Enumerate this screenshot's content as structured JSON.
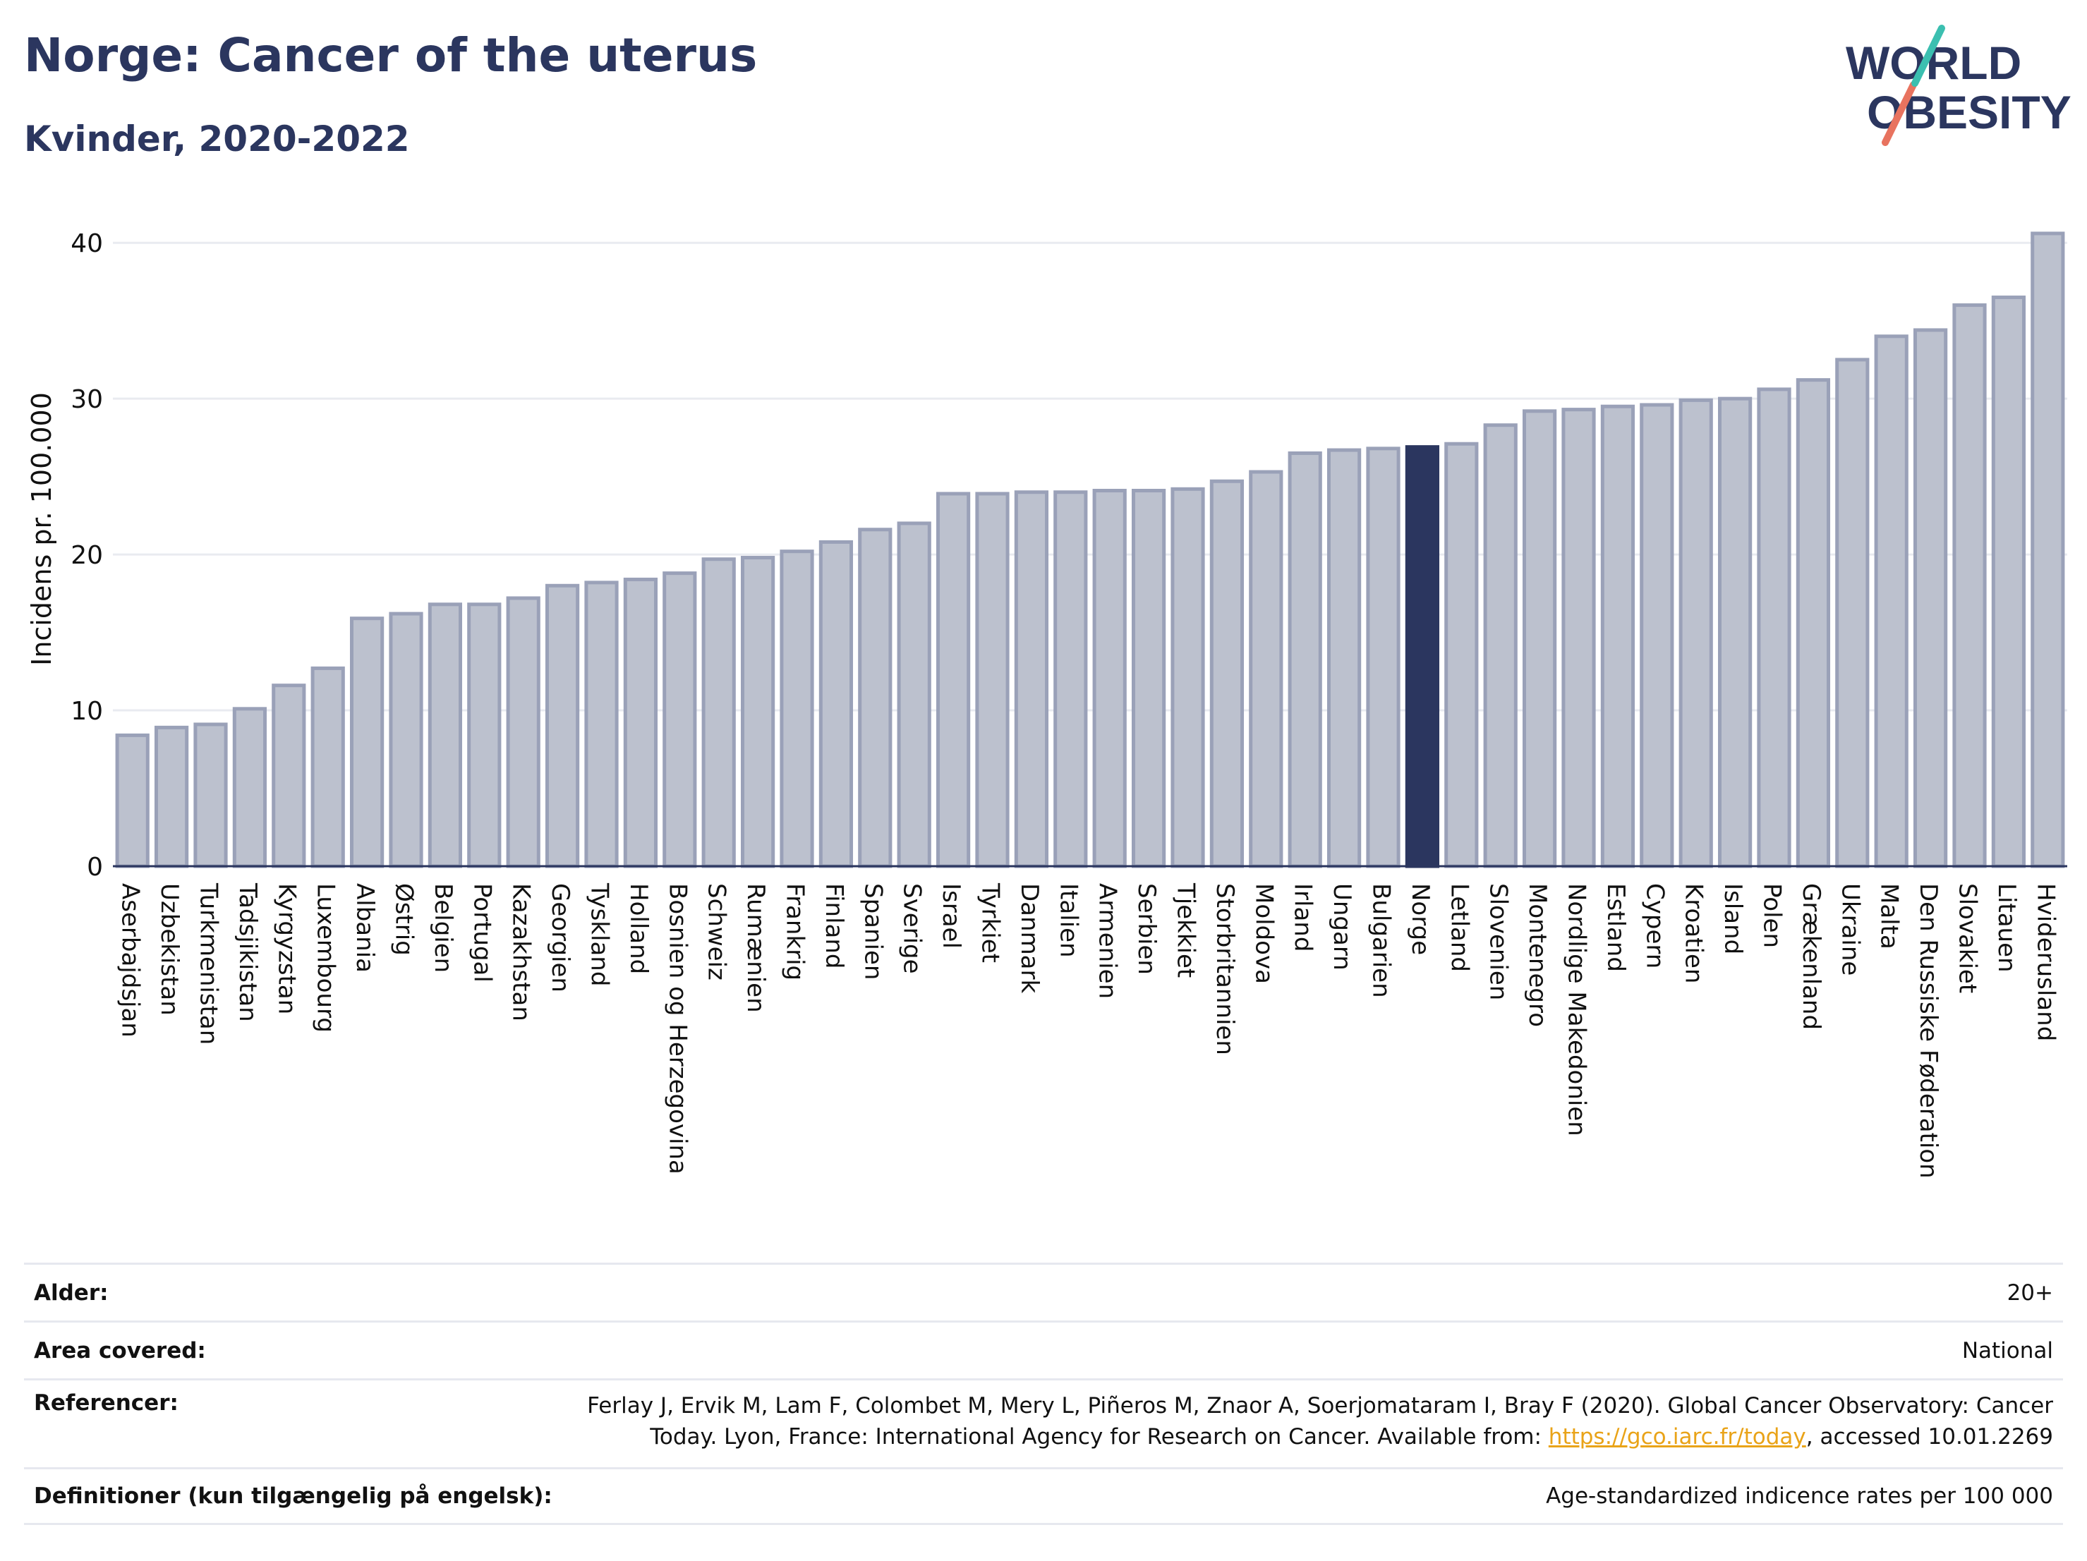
{
  "title": "Norge: Cancer of the uterus",
  "subtitle": "Kvinder, 2020-2022",
  "logo": {
    "line1": "WORLD",
    "line2": "OBESITY"
  },
  "colors": {
    "bar": "#bcc1ce",
    "bar_stroke": "#9aa1b8",
    "highlight": "#2b365f",
    "title": "#2b365f",
    "link": "#e9a318"
  },
  "chart_data": {
    "type": "bar",
    "ylabel": "Incidens pr. 100.000",
    "xlabel": "",
    "ylim": [
      0,
      42
    ],
    "yticks": [
      0,
      10,
      20,
      30,
      40
    ],
    "grid": true,
    "highlight": "Norge",
    "categories": [
      "Aserbajdsjan",
      "Uzbekistan",
      "Turkmenistan",
      "Tadsjikistan",
      "Kyrgyzstan",
      "Luxembourg",
      "Albania",
      "Østrig",
      "Belgien",
      "Portugal",
      "Kazakhstan",
      "Georgien",
      "Tyskland",
      "Holland",
      "Bosnien og Herzegovina",
      "Schweiz",
      "Rumænien",
      "Frankrig",
      "Finland",
      "Spanien",
      "Sverige",
      "Israel",
      "Tyrkiet",
      "Danmark",
      "Italien",
      "Armenien",
      "Serbien",
      "Tjekkiet",
      "Storbritannien",
      "Moldova",
      "Irland",
      "Ungarn",
      "Bulgarien",
      "Norge",
      "Letland",
      "Slovenien",
      "Montenegro",
      "Nordlige Makedonien",
      "Estland",
      "Cypern",
      "Kroatien",
      "Island",
      "Polen",
      "Grækenland",
      "Ukraine",
      "Malta",
      "Den Russiske Føderation",
      "Slovakiet",
      "Litauen",
      "Hviderusland"
    ],
    "values": [
      8.4,
      8.9,
      9.1,
      10.1,
      11.6,
      12.7,
      15.9,
      16.2,
      16.8,
      16.8,
      17.2,
      18.0,
      18.2,
      18.4,
      18.8,
      19.7,
      19.8,
      20.2,
      20.8,
      21.6,
      22.0,
      23.9,
      23.9,
      24.0,
      24.0,
      24.1,
      24.1,
      24.2,
      24.7,
      25.3,
      26.5,
      26.7,
      26.8,
      26.9,
      27.1,
      28.3,
      29.2,
      29.3,
      29.5,
      29.6,
      29.9,
      30.0,
      30.6,
      31.2,
      32.5,
      34.0,
      34.4,
      36.0,
      36.5,
      40.6
    ]
  },
  "meta": {
    "age_label": "Alder:",
    "age_value": "20+",
    "area_label": "Area covered:",
    "area_value": "National",
    "ref_label": "Referencer:",
    "ref_text_1": "Ferlay J, Ervik M, Lam F, Colombet M, Mery L, Piñeros M, Znaor A, Soerjomataram I, Bray F (2020). Global Cancer Observatory: Cancer",
    "ref_text_2": "Today. Lyon, France: International Agency for Research on Cancer. Available from: ",
    "ref_link": "https://gco.iarc.fr/today",
    "ref_text_3": ", accessed 10.01.2269",
    "def_label": "Definitioner (kun tilgængelig på engelsk):",
    "def_value": "Age-standardized indicence rates per 100 000"
  }
}
